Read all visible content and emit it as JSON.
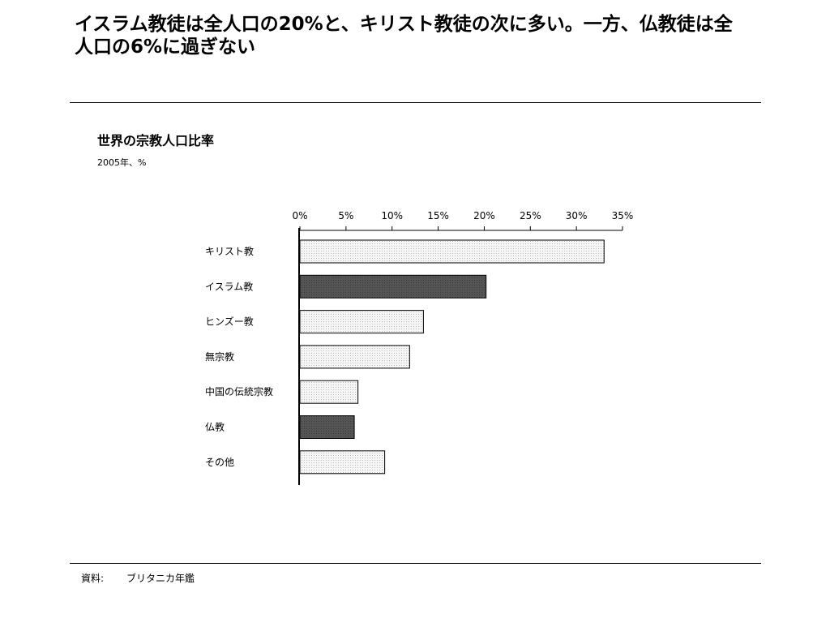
{
  "headline": "イスラム教徒は全人口の20%と、キリスト教徒の次に多い。一方、仏教徒は全人口の6%に過ぎない",
  "chart_data": {
    "type": "bar",
    "orientation": "horizontal",
    "title": "世界の宗教人口比率",
    "subtitle": "2005年、%",
    "categories": [
      "キリスト教",
      "イスラム教",
      "ヒンズー教",
      "無宗教",
      "中国の伝統宗教",
      "仏教",
      "その他"
    ],
    "values": [
      33.0,
      20.2,
      13.4,
      11.9,
      6.3,
      5.9,
      9.2
    ],
    "highlighted": [
      "イスラム教",
      "仏教"
    ],
    "xlim": [
      0,
      35
    ],
    "xticks": [
      "0%",
      "5%",
      "10%",
      "15%",
      "20%",
      "25%",
      "30%",
      "35%"
    ],
    "axis_position": "top",
    "grid": false,
    "colors": {
      "default_bar": "#ececec",
      "highlight_bar": "#505050",
      "outline": "#000000"
    }
  },
  "source": {
    "label": "資料:",
    "value": "ブリタニカ年鑑"
  }
}
